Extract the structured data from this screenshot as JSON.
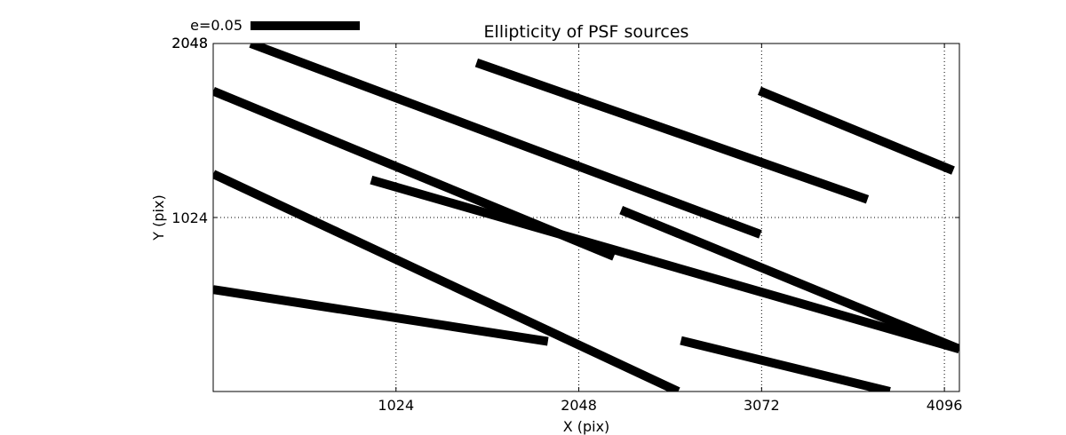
{
  "chart_data": {
    "type": "quiver",
    "title": "Ellipticity of PSF sources",
    "xlabel": "X (pix)",
    "ylabel": "Y (pix)",
    "xlim": [
      0,
      4180
    ],
    "ylim": [
      0,
      2048
    ],
    "xticks": [
      1024,
      2048,
      3072,
      4096
    ],
    "yticks": [
      0,
      1024,
      2048
    ],
    "xtick_labels": [
      "1024",
      "2048",
      "3072",
      "4096"
    ],
    "ytick_labels": [
      "1024",
      "2048"
    ],
    "ytick_labels_overlapped": [
      "2048",
      "2048"
    ],
    "grid": true,
    "grid_style": "dotted",
    "legend_label": "e=0.05",
    "legend_placement": "top-left above axes",
    "stick_color": "#000000",
    "sticks": [
      {
        "x0": 210,
        "y0": 2048,
        "x1": 3065,
        "y1": 925
      },
      {
        "x0": 1475,
        "y0": 1935,
        "x1": 3665,
        "y1": 1130
      },
      {
        "x0": 3060,
        "y0": 1770,
        "x1": 4145,
        "y1": 1300
      },
      {
        "x0": 0,
        "y0": 1768,
        "x1": 2245,
        "y1": 795
      },
      {
        "x0": 885,
        "y0": 1245,
        "x1": 4180,
        "y1": 250
      },
      {
        "x0": 2285,
        "y0": 1068,
        "x1": 4180,
        "y1": 250
      },
      {
        "x0": 0,
        "y0": 1280,
        "x1": 2605,
        "y1": 0
      },
      {
        "x0": 0,
        "y0": 600,
        "x1": 1875,
        "y1": 295
      },
      {
        "x0": 2620,
        "y0": 300,
        "x1": 3790,
        "y1": 0
      }
    ]
  }
}
